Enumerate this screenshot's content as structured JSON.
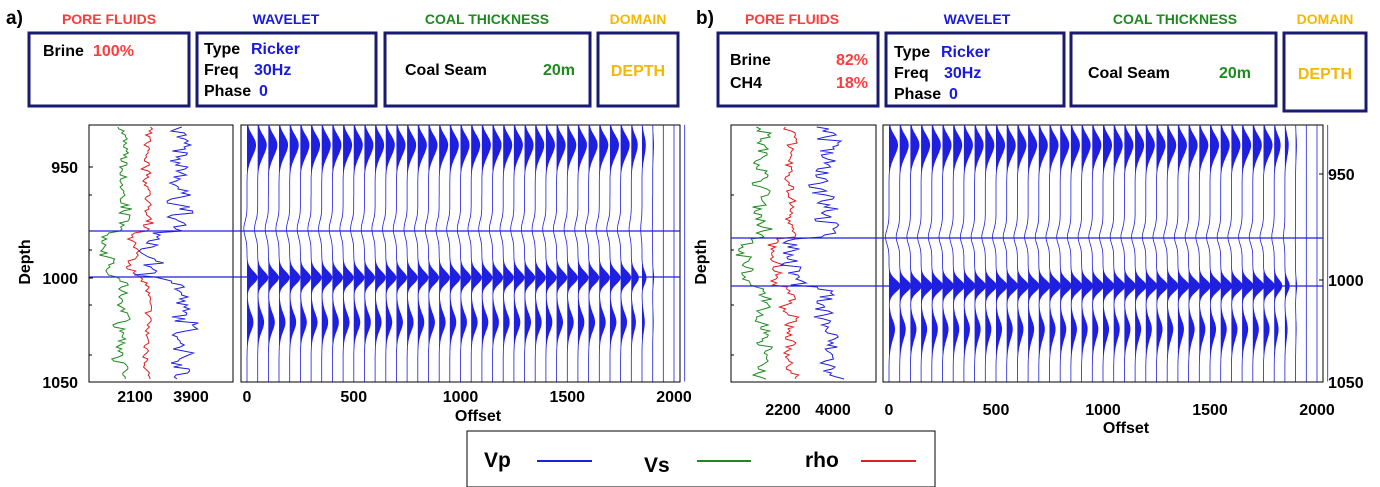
{
  "panels": [
    {
      "id": "a",
      "letter": "a)",
      "pore_fluids": {
        "title": "PORE FLUIDS",
        "rows": [
          {
            "name": "Brine",
            "pct": "100%"
          }
        ]
      },
      "wavelet": {
        "title": "WAVELET",
        "type_label": "Type",
        "type_value": "Ricker",
        "freq_label": "Freq",
        "freq_value": "30Hz",
        "phase_label": "Phase",
        "phase_value": "0"
      },
      "coal": {
        "title": "COAL THICKNESS",
        "label": "Coal Seam",
        "value": "20m"
      },
      "domain": {
        "title": "DOMAIN",
        "value": "DEPTH"
      },
      "well_log_xticks": [
        "2100",
        "3900"
      ]
    },
    {
      "id": "b",
      "letter": "b)",
      "pore_fluids": {
        "title": "PORE FLUIDS",
        "rows": [
          {
            "name": "Brine",
            "pct": "82%"
          },
          {
            "name": "CH4",
            "pct": "18%"
          }
        ]
      },
      "wavelet": {
        "title": "WAVELET",
        "type_label": "Type",
        "type_value": "Ricker",
        "freq_label": "Freq",
        "freq_value": "30Hz",
        "phase_label": "Phase",
        "phase_value": "0"
      },
      "coal": {
        "title": "COAL THICKNESS",
        "label": "Coal Seam",
        "value": "20m"
      },
      "domain": {
        "title": "DOMAIN",
        "value": "DEPTH"
      },
      "well_log_xticks": [
        "2200",
        "4000"
      ]
    }
  ],
  "legend": {
    "items": [
      {
        "label": "Vp",
        "color": "#1f1fe0"
      },
      {
        "label": "Vs",
        "color": "#1f8a1f"
      },
      {
        "label": "rho",
        "color": "#e01f1f"
      }
    ]
  },
  "colors": {
    "box_border": "#1a1a70",
    "pore_title": "#ff3b3b",
    "wavelet_title": "#1a1adf",
    "coal_title": "#1f8a1f",
    "domain_title": "#f5b800",
    "trace": "#1f1fe0"
  },
  "chart_data": [
    {
      "type": "line",
      "panel": "a",
      "xlabel": "Offset",
      "ylabel": "Depth",
      "x_ticks": [
        0,
        500,
        1000,
        1500,
        2000
      ],
      "xlim": [
        0,
        2000
      ],
      "y_ticks": [
        950,
        1000,
        1050
      ],
      "ylim": [
        1050,
        940
      ],
      "y_axis_side": "left",
      "coal_seam_depth": [
        983,
        1003
      ],
      "wiggle_trace_count": 42,
      "trace_offset_step": 50,
      "well_logs": [
        "Vp",
        "Vs",
        "rho"
      ]
    },
    {
      "type": "line",
      "panel": "b",
      "xlabel": "Offset",
      "ylabel": "Depth",
      "x_ticks": [
        0,
        500,
        1000,
        1500,
        2000
      ],
      "xlim": [
        0,
        2000
      ],
      "y_ticks": [
        950,
        1000,
        1050
      ],
      "ylim": [
        1050,
        940
      ],
      "y_axis_side": "right",
      "coal_seam_depth": [
        983,
        1003
      ],
      "wiggle_trace_count": 42,
      "trace_offset_step": 50,
      "well_logs": [
        "Vp",
        "Vs",
        "rho"
      ]
    }
  ]
}
